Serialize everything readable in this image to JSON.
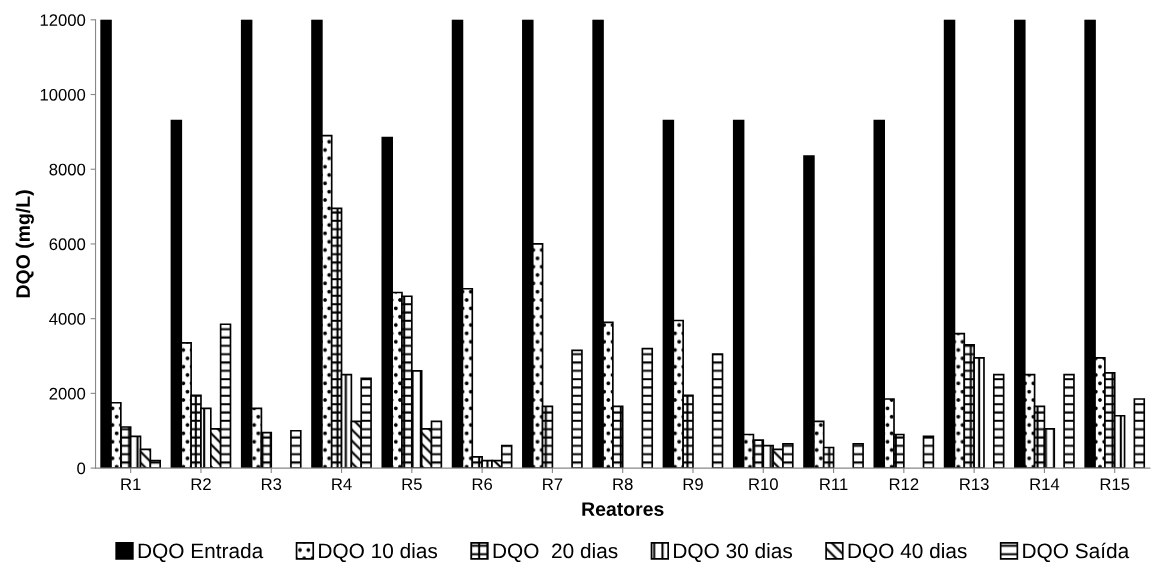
{
  "chart_data": {
    "type": "bar",
    "xlabel": "Reatores",
    "ylabel": "DQO (mg/L)",
    "categories": [
      "R1",
      "R2",
      "R3",
      "R4",
      "R5",
      "R6",
      "R7",
      "R8",
      "R9",
      "R10",
      "R11",
      "R12",
      "R13",
      "R14",
      "R15"
    ],
    "series": [
      {
        "name": "DQO Entrada",
        "color": "#000000",
        "values": [
          12000,
          9300,
          12000,
          12000,
          8850,
          12000,
          12000,
          12000,
          9300,
          9300,
          8350,
          9300,
          12000,
          12000,
          12000
        ]
      },
      {
        "name": "DQO 10 dias",
        "color": "#000000",
        "values": [
          1750,
          3350,
          1600,
          8900,
          4700,
          4800,
          6000,
          3900,
          3950,
          900,
          1250,
          1850,
          3600,
          2500,
          2950
        ]
      },
      {
        "name": "DQO  20 dias",
        "color": "#000000",
        "values": [
          1100,
          1950,
          950,
          6950,
          4600,
          300,
          1650,
          1650,
          1950,
          750,
          550,
          900,
          3300,
          1650,
          2550
        ]
      },
      {
        "name": "DQO 30 dias",
        "color": "#000000",
        "values": [
          850,
          1600,
          null,
          2500,
          2600,
          200,
          null,
          null,
          null,
          600,
          null,
          null,
          2950,
          1050,
          1400
        ]
      },
      {
        "name": "DQO 40 dias",
        "color": "#000000",
        "values": [
          500,
          1050,
          null,
          1250,
          1050,
          200,
          null,
          null,
          null,
          500,
          null,
          null,
          null,
          null,
          null
        ]
      },
      {
        "name": "DQO Saída",
        "color": "#000000",
        "values": [
          200,
          3850,
          1000,
          2400,
          1250,
          600,
          3150,
          3200,
          3050,
          650,
          650,
          850,
          2500,
          2500,
          1850
        ]
      }
    ],
    "ylim": [
      0,
      12000
    ],
    "yticks": [
      0,
      2000,
      4000,
      6000,
      8000,
      10000,
      12000
    ],
    "grid": false,
    "legend": "bottom"
  }
}
